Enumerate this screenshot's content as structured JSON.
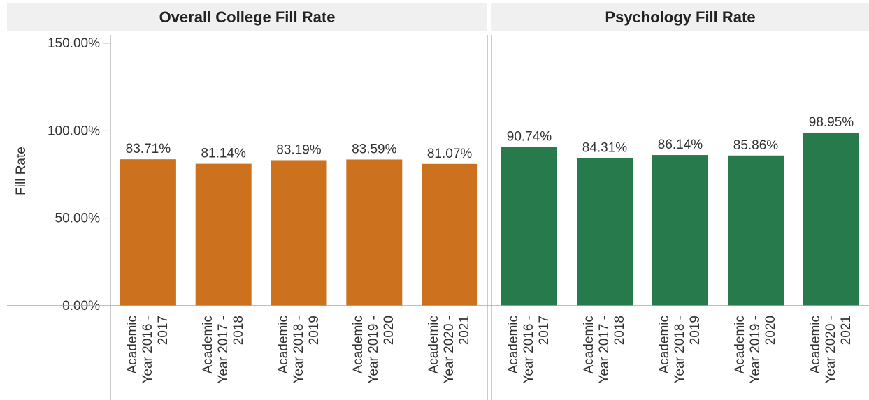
{
  "chart_data": [
    {
      "type": "bar",
      "title": "Overall College Fill Rate",
      "ylabel": "Fill Rate",
      "categories": [
        "Academic Year 2016 - 2017",
        "Academic Year 2017 - 2018",
        "Academic Year 2018 - 2019",
        "Academic Year 2019 - 2020",
        "Academic Year 2020 - 2021"
      ],
      "values": [
        83.71,
        81.14,
        83.19,
        83.59,
        81.07
      ],
      "value_labels": [
        "83.71%",
        "81.14%",
        "83.19%",
        "83.59%",
        "81.07%"
      ],
      "color": "#cc711e",
      "ylim": [
        0,
        150
      ],
      "yticks": [
        {
          "value": 0,
          "label": "0.00%"
        },
        {
          "value": 50,
          "label": "50.00%"
        },
        {
          "value": 100,
          "label": "100.00%"
        },
        {
          "value": 150,
          "label": "150.00%"
        }
      ]
    },
    {
      "type": "bar",
      "title": "Psychology Fill Rate",
      "categories": [
        "Academic Year 2016 - 2017",
        "Academic Year 2017 - 2018",
        "Academic Year 2018 - 2019",
        "Academic Year 2019 - 2020",
        "Academic Year 2020 - 2021"
      ],
      "values": [
        90.74,
        84.31,
        86.14,
        85.86,
        98.95
      ],
      "value_labels": [
        "90.74%",
        "84.31%",
        "86.14%",
        "85.86%",
        "98.95%"
      ],
      "color": "#277a4c",
      "ylim": [
        0,
        150
      ]
    }
  ]
}
